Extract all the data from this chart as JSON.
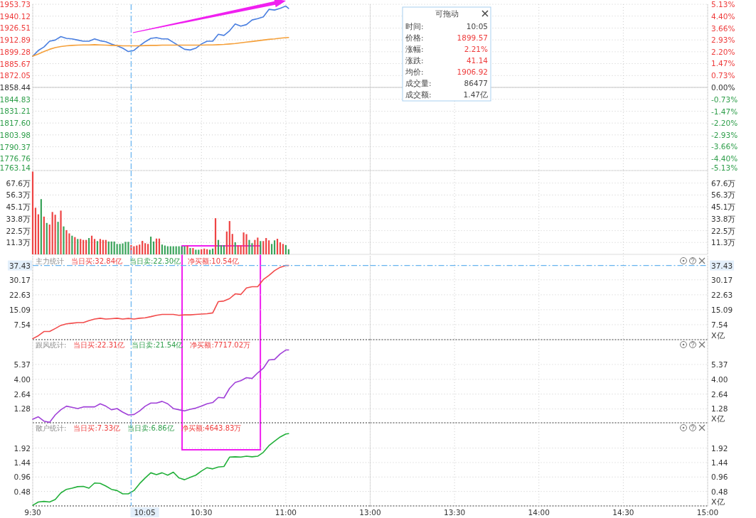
{
  "chart_data": [
    {
      "type": "line",
      "x": [
        9.5,
        9.5333,
        9.5667,
        9.6,
        9.6333,
        9.6667,
        9.7,
        9.7333,
        9.7667,
        9.8,
        9.8333,
        9.8667,
        9.9,
        9.9333,
        9.9667,
        10,
        10.0333,
        10.0667,
        10.1,
        10.1333,
        10.1667,
        10.2,
        10.2333,
        10.2667,
        10.3,
        10.3333,
        10.3667,
        10.4,
        10.4333,
        10.4667,
        10.5,
        10.5333,
        10.5667,
        10.6,
        10.6333,
        10.6667,
        10.7,
        10.7333,
        10.7667,
        10.8,
        10.8333,
        10.8667,
        10.9,
        10.9333,
        10.9667,
        11,
        11.0167
      ],
      "series": [
        {
          "color": "#4a7fe0",
          "values": [
            1894.2,
            1900.8,
            1904.8,
            1911.4,
            1912.7,
            1916.7,
            1914.6,
            1914.0,
            1912.7,
            1911.4,
            1911.4,
            1914.0,
            1911.9,
            1910.8,
            1908.2,
            1906.1,
            1903.4,
            1899.5,
            1900.8,
            1906.1,
            1910.8,
            1914.6,
            1915.4,
            1914.0,
            1914.0,
            1910.0,
            1906.1,
            1902.1,
            1901.3,
            1903.4,
            1908.2,
            1911.4,
            1911.4,
            1919.3,
            1918.0,
            1923.3,
            1931.2,
            1928.6,
            1930.4,
            1935.7,
            1937.3,
            1939.2,
            1947.9,
            1947.1,
            1949.0,
            1951.6,
            1949.0
          ]
        },
        {
          "color": "#f5a03a",
          "values": [
            1894.2,
            1896.8,
            1899.5,
            1902.1,
            1904.0,
            1905.3,
            1906.1,
            1906.6,
            1906.9,
            1907.1,
            1907.1,
            1907.4,
            1907.1,
            1906.9,
            1906.6,
            1906.4,
            1906.1,
            1906.1,
            1906.1,
            1906.1,
            1906.4,
            1906.6,
            1906.6,
            1906.9,
            1906.9,
            1906.9,
            1906.9,
            1906.9,
            1906.9,
            1906.9,
            1906.9,
            1907.1,
            1907.1,
            1907.4,
            1907.7,
            1908.2,
            1908.7,
            1909.5,
            1910.3,
            1911.1,
            1911.9,
            1912.7,
            1913.5,
            1914.0,
            1914.8,
            1915.4,
            1915.6
          ]
        }
      ],
      "xlim": [
        9.5,
        11.5
      ],
      "xticks": [
        9.5,
        10,
        10.5,
        11
      ],
      "ylim": [
        1763.14,
        1953.73
      ],
      "yticks": [
        {
          "value": 1953.73,
          "label": "1953.73"
        },
        {
          "value": 1940.12,
          "label": "1940.12"
        },
        {
          "value": 1926.51,
          "label": "1926.51"
        },
        {
          "value": 1912.89,
          "label": "1912.89"
        },
        {
          "value": 1899.28,
          "label": "1899.28"
        },
        {
          "value": 1885.67,
          "label": "1885.67"
        },
        {
          "value": 1872.05,
          "label": "1872.05"
        },
        {
          "value": 1858.44,
          "label": "1858.44"
        },
        {
          "value": 1844.83,
          "label": "1844.83"
        },
        {
          "value": 1831.21,
          "label": "1831.21"
        },
        {
          "value": 1817.6,
          "label": "1817.60"
        },
        {
          "value": 1803.98,
          "label": "1803.98"
        },
        {
          "value": 1790.37,
          "label": "1790.37"
        },
        {
          "value": 1776.76,
          "label": "1776.76"
        },
        {
          "value": 1763.14,
          "label": "1763.14"
        }
      ],
      "grid": true,
      "tick_labels": "y",
      "ref_lines": [
        {
          "axis": "y",
          "value": 1858.44,
          "color": "#c8c8c8",
          "line_style": "solid"
        },
        {
          "axis": "x",
          "value": 10.0833,
          "color": "#66b3f0",
          "line_style": "dashed"
        }
      ]
    },
    {
      "type": "line",
      "xlim": [
        13,
        15
      ],
      "xticks": [
        13,
        13.5,
        14,
        14.5,
        15
      ],
      "y2lim": [
        -5.13,
        5.13
      ],
      "y2ticks": [
        {
          "value": 5.13,
          "label": "5.13%"
        },
        {
          "value": 4.4,
          "label": "4.40%"
        },
        {
          "value": 3.66,
          "label": "3.66%"
        },
        {
          "value": 2.93,
          "label": "2.93%"
        },
        {
          "value": 2.2,
          "label": "2.20%"
        },
        {
          "value": 1.47,
          "label": "1.47%"
        },
        {
          "value": 0.73,
          "label": "0.73%"
        },
        {
          "value": 0,
          "label": "0.00%"
        },
        {
          "value": -0.73,
          "label": "-0.73%"
        },
        {
          "value": -1.47,
          "label": "-1.47%"
        },
        {
          "value": -2.2,
          "label": "-2.20%"
        },
        {
          "value": -2.93,
          "label": "-2.93%"
        },
        {
          "value": -3.66,
          "label": "-3.66%"
        },
        {
          "value": -4.4,
          "label": "-4.40%"
        },
        {
          "value": -5.13,
          "label": "-5.13%"
        }
      ],
      "grid": true,
      "tick_labels": "y",
      "ref_lines": [
        {
          "axis": "y2",
          "value": 0,
          "color": "#c8c8c8",
          "line_style": "solid"
        }
      ]
    },
    {
      "type": "other",
      "title": "可拖动",
      "annotations": [
        "时间:",
        "10:05",
        "价格:",
        "1899.57",
        "涨幅:",
        "2.21%",
        "涨跌:",
        "41.14",
        "均价:",
        "1906.92",
        "成交量:",
        "86477",
        "成交额:",
        "1.47亿"
      ]
    },
    {
      "type": "bar",
      "x": [
        9.5,
        9.5167,
        9.5333,
        9.55,
        9.5667,
        9.5833,
        9.6,
        9.6167,
        9.6333,
        9.65,
        9.6667,
        9.6833,
        9.7,
        9.7167,
        9.7333,
        9.75,
        9.7667,
        9.7833,
        9.8,
        9.8167,
        9.8333,
        9.85,
        9.8667,
        9.8833,
        9.9,
        9.9167,
        9.9333,
        9.95,
        9.9667,
        9.9833,
        10,
        10.0167,
        10.0333,
        10.05,
        10.0667,
        10.0833,
        10.1,
        10.1167,
        10.1333,
        10.15,
        10.1667,
        10.1833,
        10.2,
        10.2167,
        10.2333,
        10.25,
        10.2667,
        10.2833,
        10.3,
        10.3167,
        10.3333,
        10.35,
        10.3667,
        10.3833,
        10.4,
        10.4167,
        10.4333,
        10.45,
        10.4667,
        10.4833,
        10.5,
        10.5167,
        10.5333,
        10.55,
        10.5667,
        10.5833,
        10.6,
        10.6167,
        10.6333,
        10.65,
        10.6667,
        10.6833,
        10.7,
        10.7167,
        10.7333,
        10.75,
        10.7667,
        10.7833,
        10.8,
        10.8167,
        10.8333,
        10.85,
        10.8667,
        10.8833,
        10.9,
        10.9167,
        10.9333,
        10.95,
        10.9667,
        10.9833,
        11,
        11.0167
      ],
      "values": [
        78.5,
        44.2,
        38.0,
        52.4,
        35.8,
        29.8,
        28.3,
        40.2,
        37.6,
        30.9,
        41.5,
        26.5,
        23.0,
        19.9,
        17.7,
        16.4,
        14.6,
        14.6,
        13.7,
        13.7,
        15.5,
        17.7,
        14.6,
        12.6,
        14.6,
        13.7,
        13.7,
        12.2,
        12.2,
        12.2,
        9.9,
        9.9,
        10.4,
        11.9,
        11.9,
        8.8,
        7.7,
        8.4,
        9.3,
        12.8,
        10.6,
        9.9,
        16.8,
        12.2,
        15.0,
        15.0,
        9.3,
        8.4,
        7.7,
        7.7,
        7.7,
        7.7,
        7.7,
        7.7,
        7.7,
        8.4,
        6.0,
        6.0,
        4.4,
        4.4,
        4.9,
        5.5,
        4.9,
        4.4,
        5.5,
        34.3,
        13.7,
        8.8,
        8.8,
        21.7,
        31.6,
        19.4,
        11.5,
        8.8,
        8.8,
        20.8,
        19.2,
        13.7,
        10.6,
        13.7,
        15.9,
        12.6,
        12.6,
        15.5,
        13.3,
        9.9,
        13.3,
        14.8,
        11.5,
        9.9,
        8.8,
        4.9
      ],
      "colors": [
        "#ee4444",
        "#ee4444",
        "#ee4444",
        "#3aa35a",
        "#ee4444",
        "#3aa35a",
        "#ee4444",
        "#ee4444",
        "#ee4444",
        "#3aa35a",
        "#ee4444",
        "#3aa35a",
        "#ee4444",
        "#ee4444",
        "#3aa35a",
        "#ee4444",
        "#3aa35a",
        "#ee4444",
        "#ee4444",
        "#ee4444",
        "#3aa35a",
        "#ee4444",
        "#ee4444",
        "#3aa35a",
        "#ee4444",
        "#ee4444",
        "#ee4444",
        "#3aa35a",
        "#3aa35a",
        "#3aa35a",
        "#3aa35a",
        "#3aa35a",
        "#3aa35a",
        "#3aa35a",
        "#3aa35a",
        "#ee4444",
        "#ee4444",
        "#ee4444",
        "#ee4444",
        "#ee4444",
        "#ee4444",
        "#ee4444",
        "#3aa35a",
        "#3aa35a",
        "#ee4444",
        "#ee4444",
        "#3aa35a",
        "#3aa35a",
        "#3aa35a",
        "#3aa35a",
        "#3aa35a",
        "#3aa35a",
        "#3aa35a",
        "#3aa35a",
        "#3aa35a",
        "#ee4444",
        "#3aa35a",
        "#ee4444",
        "#3aa35a",
        "#3aa35a",
        "#ee4444",
        "#ee4444",
        "#ee4444",
        "#3aa35a",
        "#3aa35a",
        "#ee4444",
        "#3aa35a",
        "#3aa35a",
        "#3aa35a",
        "#ee4444",
        "#ee4444",
        "#ee4444",
        "#3aa35a",
        "#ee4444",
        "#ee4444",
        "#ee4444",
        "#ee4444",
        "#3aa35a",
        "#3aa35a",
        "#ee4444",
        "#ee4444",
        "#3aa35a",
        "#ee4444",
        "#ee4444",
        "#ee4444",
        "#3aa35a",
        "#3aa35a",
        "#ee4444",
        "#ee4444",
        "#ee4444",
        "#3aa35a",
        "#3aa35a"
      ],
      "xlim": [
        9.5,
        11.5
      ],
      "xticks": [
        9.5,
        10,
        10.5,
        11
      ],
      "ylim": [
        0,
        79.5
      ],
      "yticks": [
        {
          "value": 11.3,
          "label": "11.3万"
        },
        {
          "value": 22.5,
          "label": "22.5万"
        },
        {
          "value": 33.8,
          "label": "33.8万"
        },
        {
          "value": 45.1,
          "label": "45.1万"
        },
        {
          "value": 56.3,
          "label": "56.3万"
        },
        {
          "value": 67.6,
          "label": "67.6万"
        }
      ],
      "grid": true,
      "tick_labels": "y",
      "ref_lines": [
        {
          "axis": "x",
          "value": 10.0833,
          "color": "#66b3f0",
          "line_style": "dashed"
        }
      ]
    },
    {
      "type": "bar",
      "xlim": [
        13,
        15
      ],
      "xticks": [
        13,
        13.5,
        14,
        14.5,
        15
      ],
      "y2lim": [
        0,
        79.5
      ],
      "y2ticks": [
        {
          "value": 11.3,
          "label": "11.3万"
        },
        {
          "value": 22.5,
          "label": "22.5万"
        },
        {
          "value": 33.8,
          "label": "33.8万"
        },
        {
          "value": 45.1,
          "label": "45.1万"
        },
        {
          "value": 56.3,
          "label": "56.3万"
        },
        {
          "value": 67.6,
          "label": "67.6万"
        }
      ],
      "grid": true,
      "tick_labels": "y"
    },
    {
      "type": "line",
      "title": "主力统计",
      "annotations": [
        "当日买:32.84亿",
        "当日卖:22.30亿",
        "净买额:10.54亿"
      ],
      "x": [
        9.5,
        9.5333,
        9.5667,
        9.6,
        9.6333,
        9.6667,
        9.7,
        9.7333,
        9.7667,
        9.8,
        9.8333,
        9.8667,
        9.9,
        9.9333,
        9.9667,
        10,
        10.0333,
        10.0667,
        10.1,
        10.1333,
        10.1667,
        10.2,
        10.2333,
        10.2667,
        10.3,
        10.3333,
        10.3667,
        10.4,
        10.4333,
        10.4667,
        10.5,
        10.5333,
        10.5667,
        10.6,
        10.6333,
        10.6667,
        10.7,
        10.7333,
        10.7667,
        10.8,
        10.8333,
        10.8667,
        10.9,
        10.9333,
        10.9667,
        11,
        11.0167
      ],
      "series": [
        {
          "color": "#f24b4b",
          "values": [
            0.5,
            2.0,
            4.1,
            4.1,
            5.6,
            7.2,
            8.0,
            8.3,
            8.6,
            8.6,
            9.6,
            10.4,
            10.8,
            10.4,
            10.6,
            10.8,
            10.4,
            10.7,
            10.4,
            10.8,
            11.0,
            11.6,
            12.3,
            12.7,
            12.7,
            12.7,
            12.3,
            12.5,
            12.5,
            12.7,
            12.9,
            13.1,
            13.5,
            19.2,
            19.5,
            20.7,
            23.1,
            22.8,
            26.1,
            26.7,
            26.7,
            30.3,
            32.4,
            34.8,
            36.5,
            37.4,
            37.43
          ]
        }
      ],
      "xlim": [
        9.5,
        11.5
      ],
      "xticks": [
        9.5,
        10,
        10.5,
        11
      ],
      "ylim": [
        0,
        42.3
      ],
      "yticks": [
        7.54,
        15.09,
        22.63,
        30.17
      ],
      "grid": true,
      "tick_labels": "y",
      "ref_lines": [
        {
          "axis": "x",
          "value": 10.0833,
          "color": "#66b3f0",
          "line_style": "dashed"
        },
        {
          "axis": "y",
          "value": 37.43,
          "label": "37.43",
          "color": "#66b3f0",
          "line_style": "dashed"
        }
      ]
    },
    {
      "type": "line",
      "y2label": "X亿",
      "xlim": [
        13,
        15
      ],
      "xticks": [
        13,
        13.5,
        14,
        14.5,
        15
      ],
      "y2lim": [
        0,
        42.3
      ],
      "y2ticks": [
        7.54,
        15.09,
        22.63,
        30.17
      ],
      "grid": true,
      "tick_labels": "y",
      "ref_lines": [
        {
          "axis": "y2",
          "value": 37.43,
          "label": "37.43",
          "color": "#66b3f0",
          "line_style": "dashed"
        }
      ]
    },
    {
      "type": "line",
      "title": "跟风统计:",
      "annotations": [
        "当日买:22.31亿",
        "当日卖:21.54亿",
        "净买额:7717.02万"
      ],
      "x": [
        9.5,
        9.5333,
        9.5667,
        9.6,
        9.6333,
        9.6667,
        9.7,
        9.7333,
        9.7667,
        9.8,
        9.8333,
        9.8667,
        9.9,
        9.9333,
        9.9667,
        10,
        10.0333,
        10.0667,
        10.1,
        10.1333,
        10.1667,
        10.2,
        10.2333,
        10.2667,
        10.3,
        10.3333,
        10.3667,
        10.4,
        10.4333,
        10.4667,
        10.5,
        10.5333,
        10.5667,
        10.6,
        10.6333,
        10.6667,
        10.7,
        10.7333,
        10.7667,
        10.8,
        10.8333,
        10.8667,
        10.9,
        10.9333,
        10.9667,
        11,
        11.0167
      ],
      "series": [
        {
          "color": "#a040d8",
          "values": [
            0.33,
            0.55,
            0.15,
            0.04,
            0.72,
            1.2,
            1.53,
            1.42,
            1.31,
            1.46,
            1.46,
            1.46,
            1.75,
            1.53,
            1.2,
            1.31,
            0.98,
            0.72,
            0.76,
            1.09,
            1.53,
            1.81,
            1.81,
            1.97,
            1.75,
            1.31,
            1.2,
            1.09,
            1.24,
            1.35,
            1.53,
            1.75,
            1.86,
            2.34,
            2.29,
            3.17,
            3.71,
            3.87,
            4.15,
            4.08,
            4.59,
            5.02,
            5.79,
            5.83,
            6.33,
            6.7,
            6.7
          ]
        }
      ],
      "xlim": [
        9.5,
        11.5
      ],
      "xticks": [
        9.5,
        10,
        10.5,
        11
      ],
      "ylim": [
        0,
        7.65
      ],
      "yticks": [
        1.28,
        2.64,
        {
          "value": 4,
          "label": "4.00"
        },
        5.37
      ],
      "grid": true,
      "tick_labels": "y",
      "ref_lines": [
        {
          "axis": "x",
          "value": 10.0833,
          "color": "#66b3f0",
          "line_style": "dashed"
        }
      ]
    },
    {
      "type": "line",
      "y2label": "X亿",
      "xlim": [
        13,
        15
      ],
      "xticks": [
        13,
        13.5,
        14,
        14.5,
        15
      ],
      "y2lim": [
        0,
        7.65
      ],
      "y2ticks": [
        1.28,
        2.64,
        {
          "value": 4,
          "label": "4.00"
        },
        5.37
      ],
      "grid": true,
      "tick_labels": "y"
    },
    {
      "type": "line",
      "title": "散户统计:",
      "annotations": [
        "当日买:7.33亿",
        "当日卖:6.86亿",
        "净买额:4643.83万"
      ],
      "x": [
        9.5,
        9.5333,
        9.5667,
        9.6,
        9.6333,
        9.6667,
        9.7,
        9.7333,
        9.7667,
        9.8,
        9.8333,
        9.8667,
        9.9,
        9.9333,
        9.9667,
        10,
        10.0333,
        10.0667,
        10.1,
        10.1333,
        10.1667,
        10.2,
        10.2333,
        10.2667,
        10.3,
        10.3333,
        10.3667,
        10.4,
        10.4333,
        10.4667,
        10.5,
        10.5333,
        10.5667,
        10.6,
        10.6333,
        10.6667,
        10.7,
        10.7333,
        10.7667,
        10.8,
        10.8333,
        10.8667,
        10.9,
        10.9333,
        10.9667,
        11,
        11.0167
      ],
      "series": [
        {
          "color": "#22b03a",
          "values": [
            0.02,
            0.13,
            0.15,
            0.13,
            0.21,
            0.43,
            0.55,
            0.59,
            0.64,
            0.65,
            0.59,
            0.76,
            0.75,
            0.66,
            0.55,
            0.51,
            0.4,
            0.4,
            0.51,
            0.74,
            0.93,
            1.1,
            1.04,
            1.1,
            1.02,
            1.12,
            0.93,
            0.87,
            0.95,
            1.02,
            1.16,
            1.27,
            1.23,
            1.29,
            1.31,
            1.62,
            1.63,
            1.62,
            1.65,
            1.63,
            1.65,
            1.78,
            2.0,
            2.15,
            2.29,
            2.39,
            2.4
          ]
        }
      ],
      "xlim": [
        9.5,
        11.5
      ],
      "xticks": [
        {
          "value": 9.5,
          "label": "9:30"
        },
        {
          "value": 10,
          "label": null
        },
        {
          "value": 10.5,
          "label": "10:30"
        },
        {
          "value": 11,
          "label": "11:00"
        }
      ],
      "ylim": [
        0,
        2.76
      ],
      "yticks": [
        0.48,
        0.96,
        1.44,
        1.92
      ],
      "grid": true,
      "ref_lines": [
        {
          "axis": "x",
          "value": 10.0833,
          "label": "10:05",
          "color": "#66b3f0",
          "line_style": "dashed"
        }
      ]
    },
    {
      "type": "line",
      "y2label": "X亿",
      "xlim": [
        13,
        15
      ],
      "xticks": [
        {
          "value": 13,
          "label": "13:00"
        },
        {
          "value": 13.5,
          "label": "13:30"
        },
        {
          "value": 14,
          "label": "14:00"
        },
        {
          "value": 14.5,
          "label": "14:30"
        },
        {
          "value": 15,
          "label": "15:00"
        }
      ],
      "y2lim": [
        0,
        2.76
      ],
      "y2ticks": [
        0.48,
        0.96,
        1.44,
        1.92
      ],
      "grid": true
    }
  ]
}
